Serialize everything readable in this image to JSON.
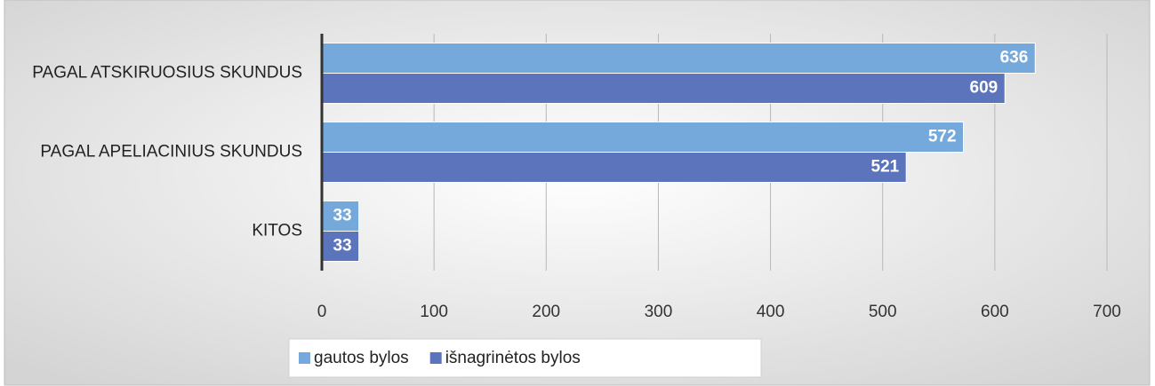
{
  "chart_data": {
    "type": "barh",
    "categories": [
      "PAGAL ATSKIRUOSIUS SKUNDUS",
      "PAGAL APELIACINIUS SKUNDUS",
      "KITOS"
    ],
    "series": [
      {
        "name": "gautos bylos",
        "color": "#75a9db",
        "values": [
          636,
          572,
          33
        ]
      },
      {
        "name": "išnagrinėtos bylos",
        "color": "#5c74bb",
        "values": [
          609,
          521,
          33
        ]
      }
    ],
    "xlim": [
      0,
      700
    ],
    "xticks": [
      0,
      100,
      200,
      300,
      400,
      500,
      600,
      700
    ],
    "grid": true,
    "legend": "bottom"
  }
}
